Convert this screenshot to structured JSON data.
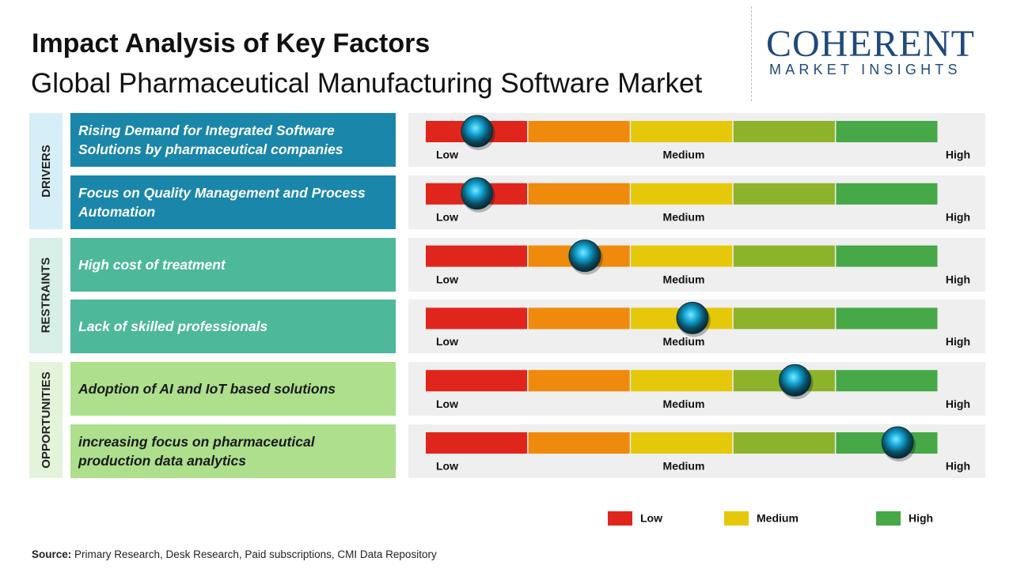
{
  "header": {
    "title": "Impact Analysis of Key Factors",
    "subtitle": "Global Pharmaceutical Manufacturing Software Market"
  },
  "logo": {
    "name": "COHERENT",
    "tagline": "MARKET INSIGHTS"
  },
  "segment_colors": [
    "#e0261c",
    "#ef8a0c",
    "#e6c80a",
    "#8db32a",
    "#46a846"
  ],
  "scale_labels": [
    "Low",
    "Medium",
    "High"
  ],
  "groups": [
    {
      "label": "DRIVERS",
      "color": "#1a86aa",
      "band_color": "#d6eef7",
      "text_color": "#ffffff",
      "factors": [
        {
          "text": "Rising Demand for Integrated Software Solutions by pharmaceutical companies",
          "level": 0.5
        },
        {
          "text": "Focus on Quality Management and Process Automation",
          "level": 0.5
        }
      ]
    },
    {
      "label": "RESTRAINTS",
      "color": "#4db89a",
      "band_color": "#d8efe8",
      "text_color": "#ffffff",
      "factors": [
        {
          "text": "High cost of treatment",
          "level": 1.55
        },
        {
          "text": "Lack of skilled professionals",
          "level": 2.6
        }
      ]
    },
    {
      "label": "OPPORTUNITIES",
      "color": "#addf8c",
      "band_color": "#e4f4da",
      "text_color": "#1a1a1a",
      "factors": [
        {
          "text": "Adoption of AI and IoT based solutions",
          "level": 3.6
        },
        {
          "text": "increasing focus on pharmaceutical production data analytics",
          "level": 4.6
        }
      ]
    }
  ],
  "legend": [
    {
      "label": "Low",
      "color": "#e0261c"
    },
    {
      "label": "Medium",
      "color": "#e6c80a"
    },
    {
      "label": "High",
      "color": "#46a846"
    }
  ],
  "source": {
    "label": "Source:",
    "text": "Primary Research, Desk Research, Paid subscriptions, CMI Data Repository"
  }
}
